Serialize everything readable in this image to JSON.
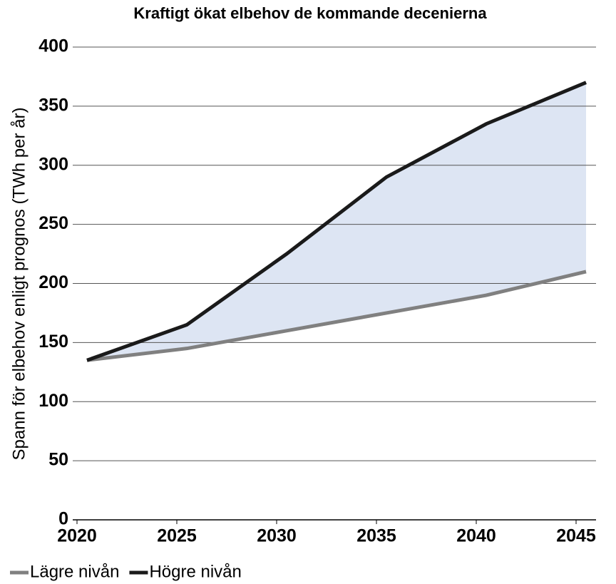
{
  "chart_data": {
    "type": "line",
    "title": "Kraftigt ökat elbehov de kommande decenierna",
    "y_label": "Spann för elbehov enligt prognos (TWh per år)",
    "x": [
      2020.5,
      2025.5,
      2030.5,
      2035.5,
      2040.5,
      2045.5
    ],
    "series": [
      {
        "name": "Lägre nivån",
        "color": "#808080",
        "values": [
          135,
          145,
          160,
          175,
          190,
          210
        ]
      },
      {
        "name": "Högre nivån",
        "color": "#1a1a1a",
        "values": [
          135,
          165,
          225,
          290,
          335,
          370
        ]
      }
    ],
    "area_color": "#dde5f3",
    "xlim": [
      2020,
      2045
    ],
    "xticks": [
      2020,
      2025,
      2030,
      2035,
      2040,
      2045
    ],
    "ylim": [
      0,
      400
    ],
    "yticks": [
      0,
      50,
      100,
      150,
      200,
      250,
      300,
      350,
      400
    ],
    "grid": true,
    "legend": "bottom-left"
  }
}
